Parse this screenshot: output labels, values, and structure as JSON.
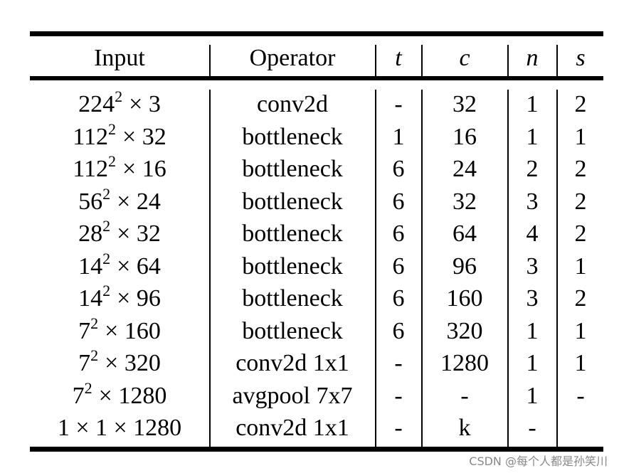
{
  "table": {
    "headers": {
      "input": "Input",
      "operator": "Operator",
      "t": "t",
      "c": "c",
      "n": "n",
      "s": "s"
    },
    "rows": [
      {
        "input_base": "224",
        "input_exp": "2",
        "input_rest": "× 3",
        "operator": "conv2d",
        "t": "-",
        "c": "32",
        "n": "1",
        "s": "2"
      },
      {
        "input_base": "112",
        "input_exp": "2",
        "input_rest": "× 32",
        "operator": "bottleneck",
        "t": "1",
        "c": "16",
        "n": "1",
        "s": "1"
      },
      {
        "input_base": "112",
        "input_exp": "2",
        "input_rest": "× 16",
        "operator": "bottleneck",
        "t": "6",
        "c": "24",
        "n": "2",
        "s": "2"
      },
      {
        "input_base": "56",
        "input_exp": "2",
        "input_rest": "× 24",
        "operator": "bottleneck",
        "t": "6",
        "c": "32",
        "n": "3",
        "s": "2"
      },
      {
        "input_base": "28",
        "input_exp": "2",
        "input_rest": "× 32",
        "operator": "bottleneck",
        "t": "6",
        "c": "64",
        "n": "4",
        "s": "2"
      },
      {
        "input_base": "14",
        "input_exp": "2",
        "input_rest": "× 64",
        "operator": "bottleneck",
        "t": "6",
        "c": "96",
        "n": "3",
        "s": "1"
      },
      {
        "input_base": "14",
        "input_exp": "2",
        "input_rest": "× 96",
        "operator": "bottleneck",
        "t": "6",
        "c": "160",
        "n": "3",
        "s": "2"
      },
      {
        "input_base": "7",
        "input_exp": "2",
        "input_rest": "× 160",
        "operator": "bottleneck",
        "t": "6",
        "c": "320",
        "n": "1",
        "s": "1"
      },
      {
        "input_base": "7",
        "input_exp": "2",
        "input_rest": "× 320",
        "operator": "conv2d 1x1",
        "t": "-",
        "c": "1280",
        "n": "1",
        "s": "1"
      },
      {
        "input_base": "7",
        "input_exp": "2",
        "input_rest": "× 1280",
        "operator": "avgpool 7x7",
        "t": "-",
        "c": "-",
        "n": "1",
        "s": "-"
      },
      {
        "input_base": "1 × 1 × 1280",
        "input_exp": "",
        "input_rest": "",
        "operator": "conv2d 1x1",
        "t": "-",
        "c": "k",
        "n": "-",
        "s": ""
      }
    ]
  },
  "watermark": "CSDN @每个人都是孙笑川"
}
